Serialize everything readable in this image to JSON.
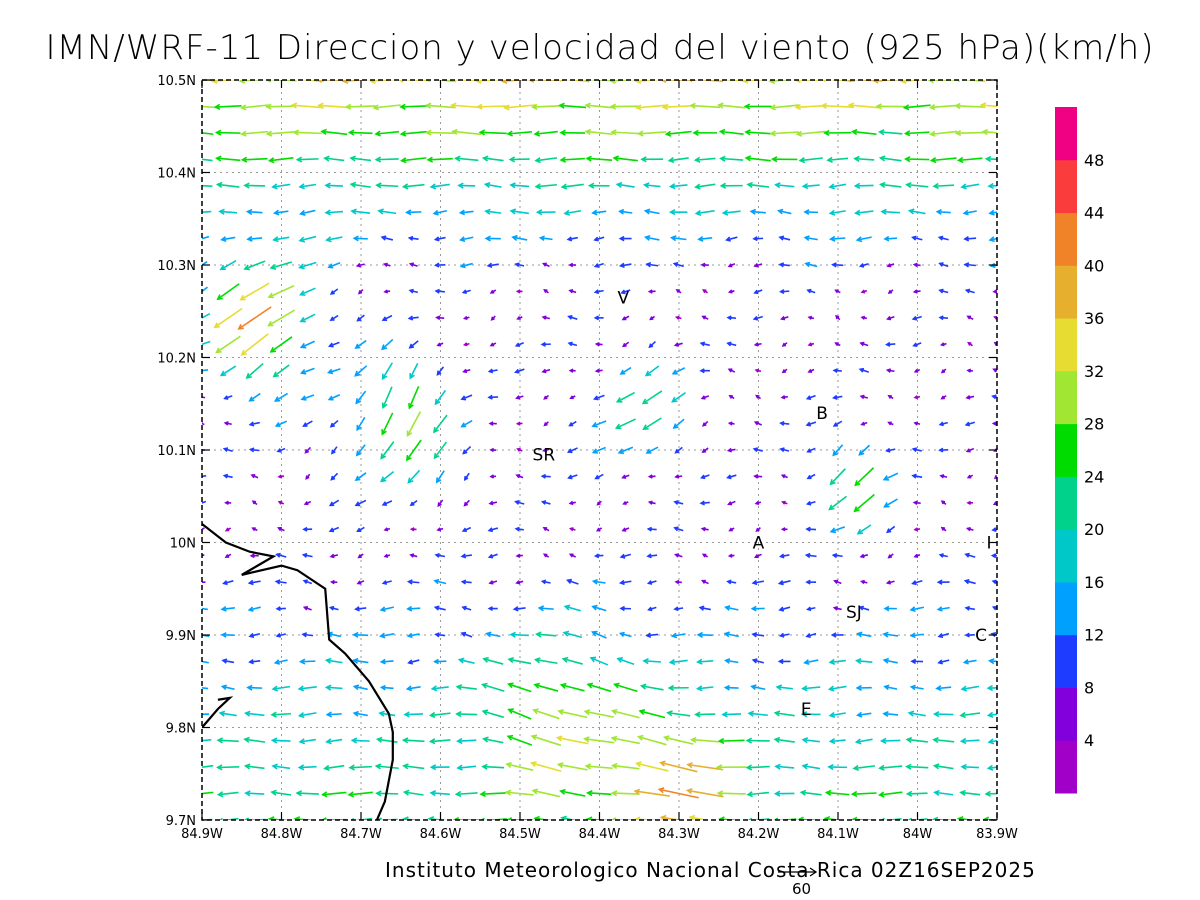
{
  "title": "IMN/WRF-11 Direccion y velocidad del viento (925 hPa)(km/h)",
  "footer": "Instituto Meteorologico Nacional Costa Rica 02Z16SEP2025",
  "reference_vector": {
    "value": "60"
  },
  "chart_data": {
    "type": "vector_field",
    "xlabel": "",
    "ylabel": "",
    "xlim": [
      -84.9,
      -83.9
    ],
    "ylim": [
      9.7,
      10.5
    ],
    "grid": true,
    "x_ticks": [
      "84.9W",
      "84.8W",
      "84.7W",
      "84.6W",
      "84.5W",
      "84.4W",
      "84.3W",
      "84.2W",
      "84.1W",
      "84W",
      "83.9W"
    ],
    "y_ticks": [
      "9.7N",
      "9.8N",
      "9.9N",
      "10N",
      "10.1N",
      "10.2N",
      "10.3N",
      "10.4N",
      "10.5N"
    ],
    "colorbar": {
      "labels": [
        "4",
        "8",
        "12",
        "16",
        "20",
        "24",
        "28",
        "32",
        "36",
        "40",
        "44",
        "48"
      ],
      "bins": [
        {
          "max": 4,
          "color": "#a000c8"
        },
        {
          "max": 8,
          "color": "#8200dc"
        },
        {
          "max": 12,
          "color": "#1e3cff"
        },
        {
          "max": 16,
          "color": "#00a0ff"
        },
        {
          "max": 20,
          "color": "#00c8c8"
        },
        {
          "max": 24,
          "color": "#00d28c"
        },
        {
          "max": 28,
          "color": "#00dc00"
        },
        {
          "max": 32,
          "color": "#a0e632"
        },
        {
          "max": 36,
          "color": "#e6dc32"
        },
        {
          "max": 40,
          "color": "#e6af2d"
        },
        {
          "max": 44,
          "color": "#f08228"
        },
        {
          "max": 48,
          "color": "#fa3c3c"
        },
        {
          "max": 52,
          "color": "#f00082"
        }
      ]
    },
    "cities": [
      {
        "label": "V",
        "lon": -84.37,
        "lat": 10.265
      },
      {
        "label": "SR",
        "lon": -84.47,
        "lat": 10.095
      },
      {
        "label": "B",
        "lon": -84.12,
        "lat": 10.14
      },
      {
        "label": "A",
        "lon": -84.2,
        "lat": 10.0
      },
      {
        "label": "I",
        "lon": -83.91,
        "lat": 10.0
      },
      {
        "label": "SJ",
        "lon": -84.08,
        "lat": 9.925
      },
      {
        "label": "C",
        "lon": -83.92,
        "lat": 9.9
      },
      {
        "label": "E",
        "lon": -84.14,
        "lat": 9.82
      }
    ],
    "coastline": [
      [
        -84.9,
        10.02
      ],
      [
        -84.87,
        10.0
      ],
      [
        -84.84,
        9.99
      ],
      [
        -84.81,
        9.985
      ],
      [
        -84.83,
        9.975
      ],
      [
        -84.85,
        9.965
      ],
      [
        -84.8,
        9.975
      ],
      [
        -84.78,
        9.97
      ],
      [
        -84.745,
        9.95
      ],
      [
        -84.74,
        9.895
      ],
      [
        -84.72,
        9.88
      ],
      [
        -84.69,
        9.85
      ],
      [
        -84.665,
        9.815
      ],
      [
        -84.66,
        9.795
      ],
      [
        -84.66,
        9.765
      ],
      [
        -84.67,
        9.72
      ],
      [
        -84.68,
        9.7
      ]
    ],
    "coastline_small": [
      [
        -84.9,
        9.8
      ],
      [
        -84.88,
        9.82
      ],
      [
        -84.865,
        9.832
      ],
      [
        -84.88,
        9.83
      ]
    ],
    "wind_description": "Wind field sampled on a grid; arrows point toward wind direction, colored by speed (km/h). Predominantly easterly flow with strong NE winds (up to ~50 km/h) in the northwest, stronger westerly-directed flow across the northern and southern rows, and weak variable winds in the central valley.",
    "wind_field": {
      "nx": 30,
      "ny": 28,
      "units": "km/h",
      "centers": [
        {
          "lon": -84.83,
          "lat": 10.24,
          "u": -26,
          "v": -22,
          "sigma": 0.07,
          "weight": 1.0
        },
        {
          "lon": -84.65,
          "lat": 10.13,
          "u": -8,
          "v": -26,
          "sigma": 0.08,
          "weight": 0.9
        },
        {
          "lon": -84.35,
          "lat": 10.14,
          "u": -18,
          "v": -20,
          "sigma": 0.06,
          "weight": 0.7
        },
        {
          "lon": -84.08,
          "lat": 10.06,
          "u": -18,
          "v": -22,
          "sigma": 0.05,
          "weight": 0.8
        },
        {
          "lon": -84.45,
          "lat": 9.82,
          "u": -18,
          "v": 14,
          "sigma": 0.09,
          "weight": 0.7
        },
        {
          "lon": -84.3,
          "lat": 9.75,
          "u": -22,
          "v": 8,
          "sigma": 0.07,
          "weight": 0.8
        }
      ],
      "background": {
        "u_north": -28,
        "u_south": -18,
        "u_mid": -6
      }
    }
  }
}
